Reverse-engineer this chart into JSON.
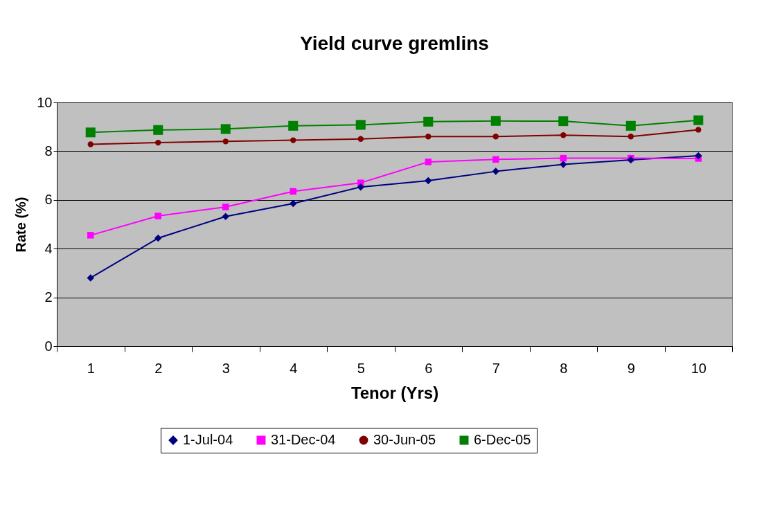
{
  "chart_data": {
    "type": "line",
    "title": "Yield curve gremlins",
    "xlabel": "Tenor (Yrs)",
    "ylabel": "Rate (%)",
    "categories": [
      "1",
      "2",
      "3",
      "4",
      "5",
      "6",
      "7",
      "8",
      "9",
      "10"
    ],
    "series": [
      {
        "name": "1-Jul-04",
        "color": "#000080",
        "marker": "diamond",
        "values": [
          2.8,
          4.43,
          5.32,
          5.85,
          6.53,
          6.79,
          7.17,
          7.46,
          7.64,
          7.81
        ]
      },
      {
        "name": "31-Dec-04",
        "color": "#ff00ff",
        "marker": "square",
        "values": [
          4.55,
          5.34,
          5.71,
          6.35,
          6.7,
          7.56,
          7.66,
          7.71,
          7.71,
          7.7
        ]
      },
      {
        "name": "30-Jun-05",
        "color": "#800000",
        "marker": "circle",
        "values": [
          8.28,
          8.35,
          8.4,
          8.45,
          8.5,
          8.6,
          8.6,
          8.66,
          8.6,
          8.88
        ]
      },
      {
        "name": "6-Dec-05",
        "color": "#008000",
        "marker": "square",
        "values": [
          8.77,
          8.87,
          8.91,
          9.04,
          9.08,
          9.21,
          9.24,
          9.23,
          9.04,
          9.27
        ]
      }
    ],
    "ylim": [
      0,
      10
    ],
    "yticks": [
      0,
      2,
      4,
      6,
      8,
      10
    ],
    "grid": "y",
    "legend": "bottom",
    "line_style": "solid"
  }
}
